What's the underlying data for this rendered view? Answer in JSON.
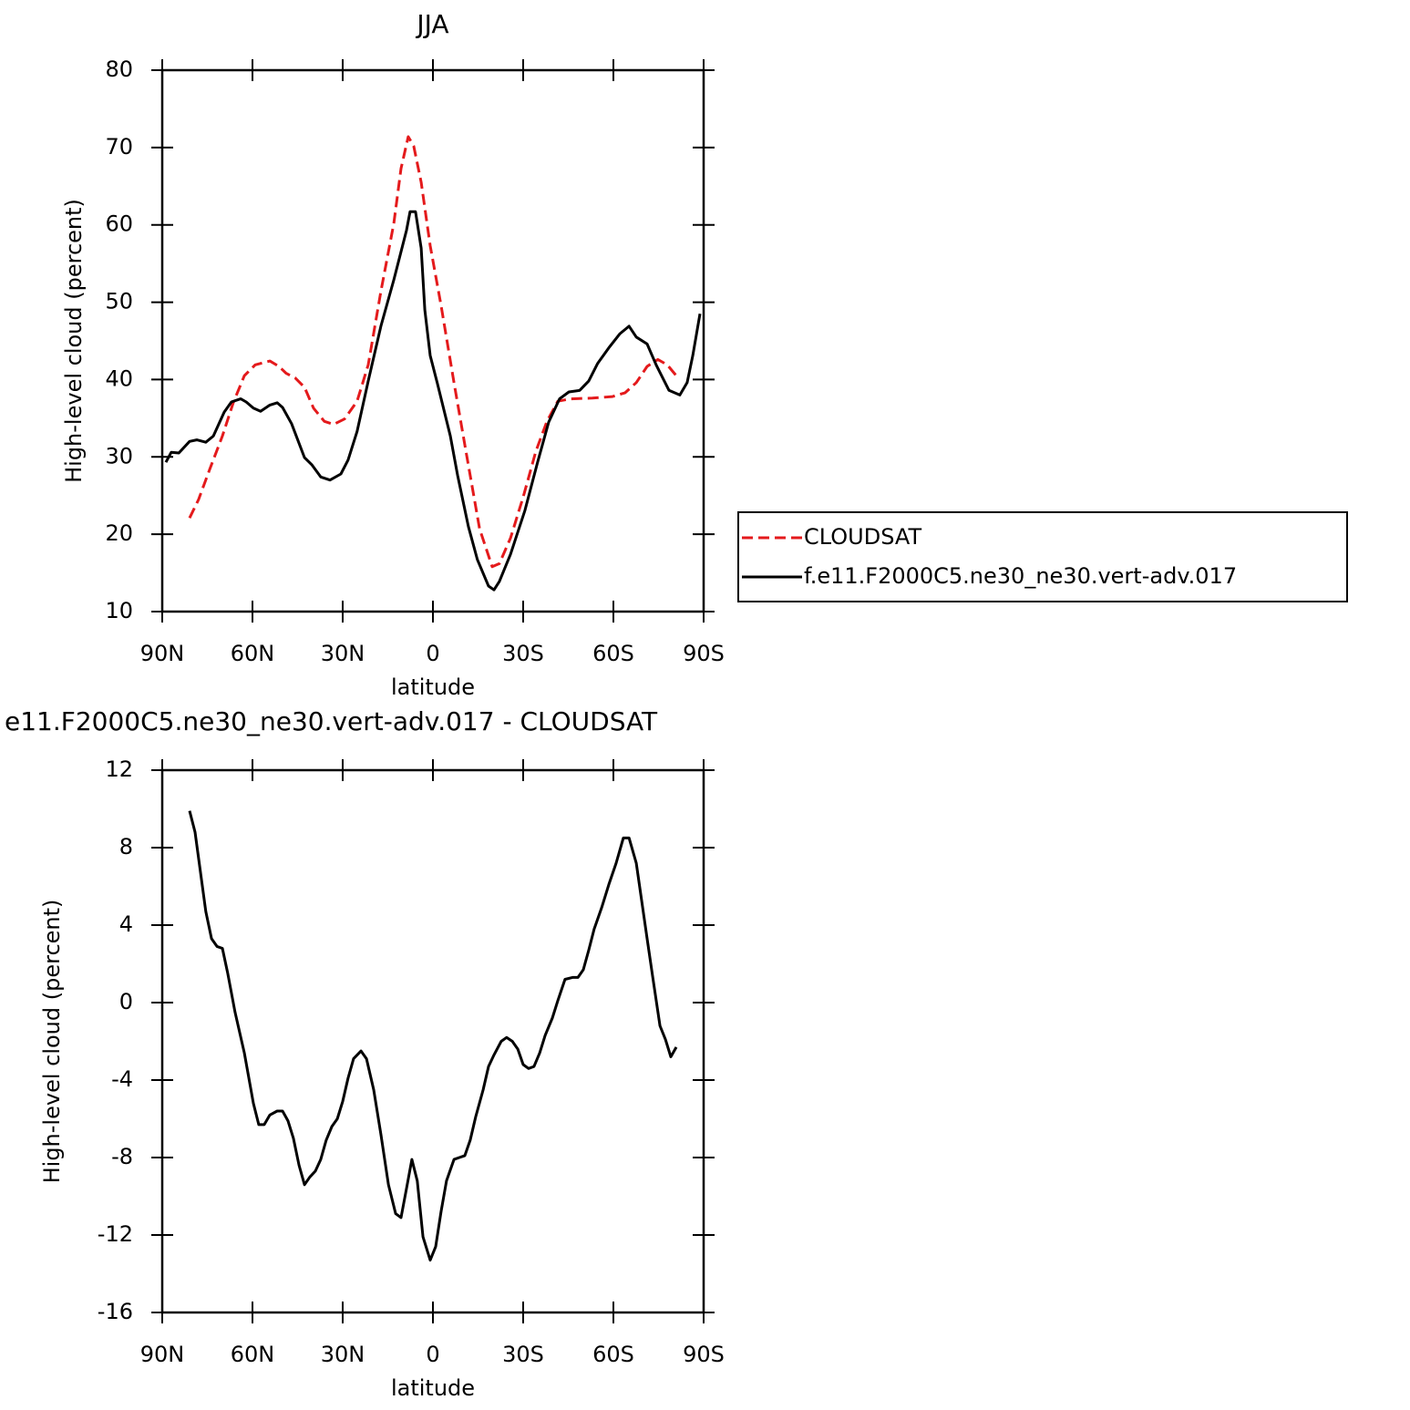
{
  "chart_data": [
    {
      "type": "line",
      "title": "JJA",
      "xlabel": "latitude",
      "ylabel": "High-level cloud (percent)",
      "xlim": [
        90,
        -90
      ],
      "xticks": [
        {
          "value": 90,
          "label": "90N"
        },
        {
          "value": 60,
          "label": "60N"
        },
        {
          "value": 30,
          "label": "30N"
        },
        0,
        {
          "value": -30,
          "label": "30S"
        },
        {
          "value": -60,
          "label": "60S"
        },
        {
          "value": -90,
          "label": "90S"
        }
      ],
      "ylim": [
        10,
        80
      ],
      "yticks": [
        10,
        20,
        30,
        40,
        50,
        60,
        70,
        80
      ],
      "legend": "right",
      "series": [
        {
          "name": "CLOUDSAT",
          "color": "#e41a1c",
          "linestyle": "dashed",
          "x": [
            80.9,
            77.9,
            74.2,
            70.0,
            66.4,
            62.7,
            59.1,
            54.2,
            51.2,
            48.8,
            45.8,
            42.7,
            39.7,
            36.1,
            33.0,
            29.4,
            25.2,
            21.5,
            17.3,
            13.0,
            10.6,
            8.2,
            6.4,
            3.9,
            0.9,
            -2.7,
            -7.0,
            -11.2,
            -15.5,
            -19.7,
            -22.1,
            -25.8,
            -30.0,
            -34.2,
            -37.9,
            -41.5,
            -45.8,
            -53.0,
            -59.7,
            -63.9,
            -67.6,
            -71.2,
            -74.8,
            -77.9,
            -80.9
          ],
          "values": [
            22.1,
            24.5,
            28.4,
            32.7,
            37.0,
            40.5,
            41.9,
            42.4,
            41.7,
            40.8,
            40.2,
            39.0,
            36.3,
            34.6,
            34.2,
            34.9,
            37.2,
            41.9,
            51.4,
            60.2,
            67.3,
            71.4,
            70.2,
            65.5,
            57.3,
            49.6,
            39.6,
            30.2,
            20.7,
            15.8,
            16.2,
            19.5,
            24.8,
            30.7,
            34.6,
            37.2,
            37.5,
            37.6,
            37.8,
            38.3,
            39.6,
            41.7,
            42.6,
            41.9,
            40.5
          ]
        },
        {
          "name": "f.e11.F2000C5.ne30_ne30.vert-adv.017",
          "color": "#000000",
          "linestyle": "solid",
          "x": [
            88.8,
            87.0,
            84.5,
            80.9,
            78.5,
            75.5,
            73.0,
            69.4,
            67.0,
            63.9,
            62.1,
            59.7,
            57.3,
            54.2,
            51.8,
            50.0,
            47.0,
            42.7,
            40.3,
            37.3,
            34.2,
            30.6,
            28.2,
            25.2,
            21.5,
            17.3,
            13.0,
            8.8,
            7.6,
            5.8,
            3.9,
            2.7,
            0.9,
            -1.5,
            -5.8,
            -8.2,
            -11.8,
            -14.8,
            -18.5,
            -20.3,
            -22.1,
            -25.8,
            -30.6,
            -34.8,
            -38.5,
            -42.1,
            -45.2,
            -48.8,
            -51.8,
            -54.8,
            -58.5,
            -62.1,
            -65.2,
            -67.6,
            -71.2,
            -74.2,
            -78.5,
            -82.1,
            -84.5,
            -86.4,
            -88.8
          ],
          "values": [
            29.3,
            30.6,
            30.5,
            32.0,
            32.2,
            31.9,
            32.7,
            35.8,
            37.1,
            37.5,
            37.1,
            36.3,
            35.9,
            36.7,
            37.0,
            36.4,
            34.3,
            29.9,
            29.0,
            27.4,
            27.0,
            27.8,
            29.6,
            33.3,
            39.8,
            46.9,
            52.9,
            59.3,
            61.7,
            61.7,
            57.0,
            49.0,
            43.1,
            39.5,
            32.7,
            27.6,
            21.0,
            16.7,
            13.3,
            12.8,
            13.9,
            17.4,
            23.1,
            29.3,
            34.5,
            37.5,
            38.4,
            38.6,
            39.8,
            42.1,
            44.1,
            45.9,
            46.9,
            45.5,
            44.6,
            41.9,
            38.6,
            38.0,
            39.6,
            43.1,
            48.5
          ]
        }
      ]
    },
    {
      "type": "line",
      "title": "e11.F2000C5.ne30_ne30.vert-adv.017 - CLOUDSAT",
      "xlabel": "latitude",
      "ylabel": "High-level cloud (percent)",
      "xlim": [
        90,
        -90
      ],
      "xticks": [
        {
          "value": 90,
          "label": "90N"
        },
        {
          "value": 60,
          "label": "60N"
        },
        {
          "value": 30,
          "label": "30N"
        },
        0,
        {
          "value": -30,
          "label": "30S"
        },
        {
          "value": -60,
          "label": "60S"
        },
        {
          "value": -90,
          "label": "90S"
        }
      ],
      "ylim": [
        -16,
        12
      ],
      "yticks": [
        -16,
        -12,
        -8,
        -4,
        0,
        4,
        8,
        12
      ],
      "series": [
        {
          "color": "#000000",
          "linestyle": "solid",
          "x": [
            80.9,
            79.1,
            75.5,
            73.6,
            71.8,
            70.0,
            68.2,
            65.8,
            62.7,
            59.7,
            57.9,
            56.1,
            54.2,
            51.8,
            50.0,
            48.2,
            46.4,
            44.5,
            42.7,
            40.9,
            39.1,
            37.3,
            35.5,
            33.6,
            31.8,
            30.0,
            28.2,
            26.4,
            23.9,
            22.1,
            19.7,
            17.3,
            14.8,
            12.4,
            10.6,
            8.8,
            7.0,
            5.2,
            3.3,
            0.9,
            -0.9,
            -2.7,
            -4.5,
            -7.0,
            -8.8,
            -10.6,
            -12.4,
            -14.2,
            -16.7,
            -18.5,
            -20.3,
            -22.7,
            -24.5,
            -26.4,
            -28.2,
            -30.0,
            -31.8,
            -33.6,
            -35.5,
            -37.3,
            -39.7,
            -41.5,
            -43.9,
            -46.4,
            -48.2,
            -50.0,
            -51.8,
            -53.6,
            -56.1,
            -58.5,
            -60.9,
            -63.3,
            -65.2,
            -67.6,
            -71.2,
            -73.0,
            -75.5,
            -77.3,
            -79.1,
            -80.9
          ],
          "values": [
            9.9,
            8.8,
            4.7,
            3.3,
            2.9,
            2.8,
            1.5,
            -0.5,
            -2.6,
            -5.2,
            -6.3,
            -6.3,
            -5.8,
            -5.6,
            -5.6,
            -6.1,
            -7.0,
            -8.4,
            -9.4,
            -9.0,
            -8.7,
            -8.1,
            -7.1,
            -6.4,
            -6.0,
            -5.1,
            -3.9,
            -2.9,
            -2.5,
            -2.9,
            -4.5,
            -6.8,
            -9.4,
            -10.9,
            -11.1,
            -9.6,
            -8.1,
            -9.2,
            -12.1,
            -13.3,
            -12.6,
            -10.8,
            -9.2,
            -8.1,
            -8.0,
            -7.9,
            -7.1,
            -5.9,
            -4.5,
            -3.3,
            -2.7,
            -2.0,
            -1.8,
            -2.0,
            -2.4,
            -3.2,
            -3.4,
            -3.3,
            -2.6,
            -1.7,
            -0.8,
            0.1,
            1.2,
            1.3,
            1.3,
            1.7,
            2.7,
            3.8,
            4.9,
            6.1,
            7.2,
            8.5,
            8.5,
            7.2,
            3.3,
            1.4,
            -1.2,
            -1.9,
            -2.8,
            -2.3
          ]
        }
      ]
    }
  ]
}
